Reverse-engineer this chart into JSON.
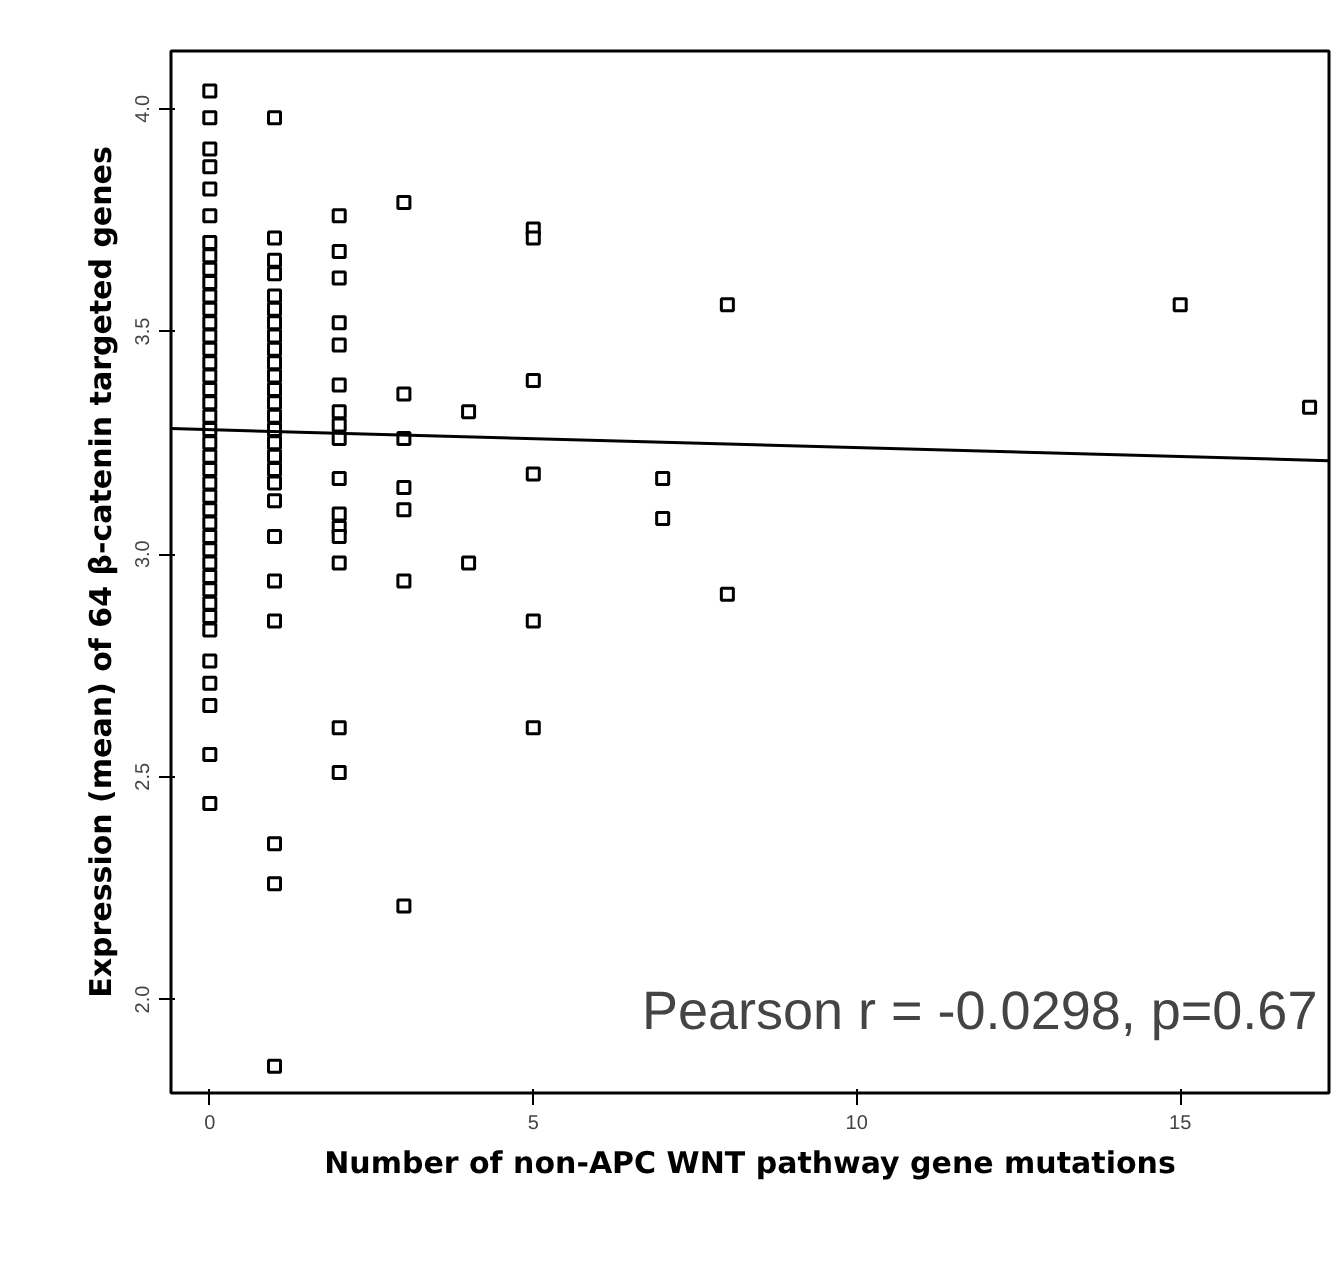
{
  "chart_data": {
    "type": "scatter",
    "xlabel": "Number of non-APC WNT pathway gene mutations",
    "ylabel": "Expression (mean) of 64 β-catenin targeted genes",
    "annotations": [
      "Pearson r = -0.0298, p=0.67"
    ],
    "xlim": [
      -0.6,
      17.3
    ],
    "ylim": [
      1.79,
      4.13
    ],
    "xticks": [
      0,
      5,
      10,
      15
    ],
    "yticks": [
      {
        "value": 2,
        "label": "2.0"
      },
      {
        "value": 2.5,
        "label": "2.5"
      },
      {
        "value": 3,
        "label": "3.0"
      },
      {
        "value": 3.5,
        "label": "3.5"
      },
      {
        "value": 4,
        "label": "4.0"
      }
    ],
    "grid": false,
    "series": [
      {
        "marker": "square",
        "color": "#000000",
        "x": [
          0,
          0,
          0,
          0,
          0,
          0,
          0,
          0,
          0,
          0,
          0,
          0,
          0,
          0,
          0,
          0,
          0,
          0,
          0,
          0,
          0,
          0,
          0,
          0,
          0,
          0,
          0,
          0,
          0,
          0,
          0,
          0,
          0,
          0,
          0,
          0,
          0,
          0,
          0,
          0,
          0,
          1,
          1,
          1,
          1,
          1,
          1,
          1,
          1,
          1,
          1,
          1,
          1,
          1,
          1,
          1,
          1,
          1,
          1,
          1,
          1,
          1,
          1,
          1,
          1,
          1,
          1,
          2,
          2,
          2,
          2,
          2,
          2,
          2,
          2,
          2,
          2,
          2,
          2,
          2,
          2,
          2,
          2,
          3,
          3,
          3,
          3,
          3,
          3,
          3,
          4,
          4,
          5,
          5,
          5,
          5,
          5,
          5,
          7,
          7,
          8,
          8,
          15,
          17
        ],
        "values": [
          4.04,
          3.98,
          3.91,
          3.87,
          3.82,
          3.76,
          3.7,
          3.67,
          3.64,
          3.61,
          3.58,
          3.55,
          3.52,
          3.49,
          3.46,
          3.43,
          3.4,
          3.37,
          3.34,
          3.31,
          3.28,
          3.25,
          3.22,
          3.19,
          3.16,
          3.13,
          3.1,
          3.07,
          3.04,
          3.01,
          2.98,
          2.95,
          2.92,
          2.89,
          2.86,
          2.83,
          2.76,
          2.71,
          2.66,
          2.55,
          2.44,
          3.98,
          3.71,
          3.66,
          3.63,
          3.58,
          3.55,
          3.52,
          3.49,
          3.46,
          3.43,
          3.4,
          3.37,
          3.34,
          3.31,
          3.28,
          3.25,
          3.22,
          3.19,
          3.16,
          3.12,
          3.04,
          2.94,
          2.85,
          2.35,
          2.26,
          1.85,
          3.76,
          3.68,
          3.62,
          3.52,
          3.47,
          3.38,
          3.32,
          3.29,
          3.26,
          3.17,
          3.09,
          3.06,
          3.04,
          2.98,
          2.61,
          2.51,
          3.79,
          3.36,
          3.26,
          3.15,
          3.1,
          2.94,
          2.21,
          3.32,
          2.98,
          3.73,
          3.71,
          3.39,
          3.18,
          2.85,
          2.61,
          3.17,
          3.08,
          3.56,
          2.91,
          3.56,
          3.33
        ]
      },
      {
        "type": "line",
        "color": "#000000",
        "x": [
          -0.6,
          17.3
        ],
        "values": [
          3.282,
          3.21
        ]
      }
    ]
  }
}
